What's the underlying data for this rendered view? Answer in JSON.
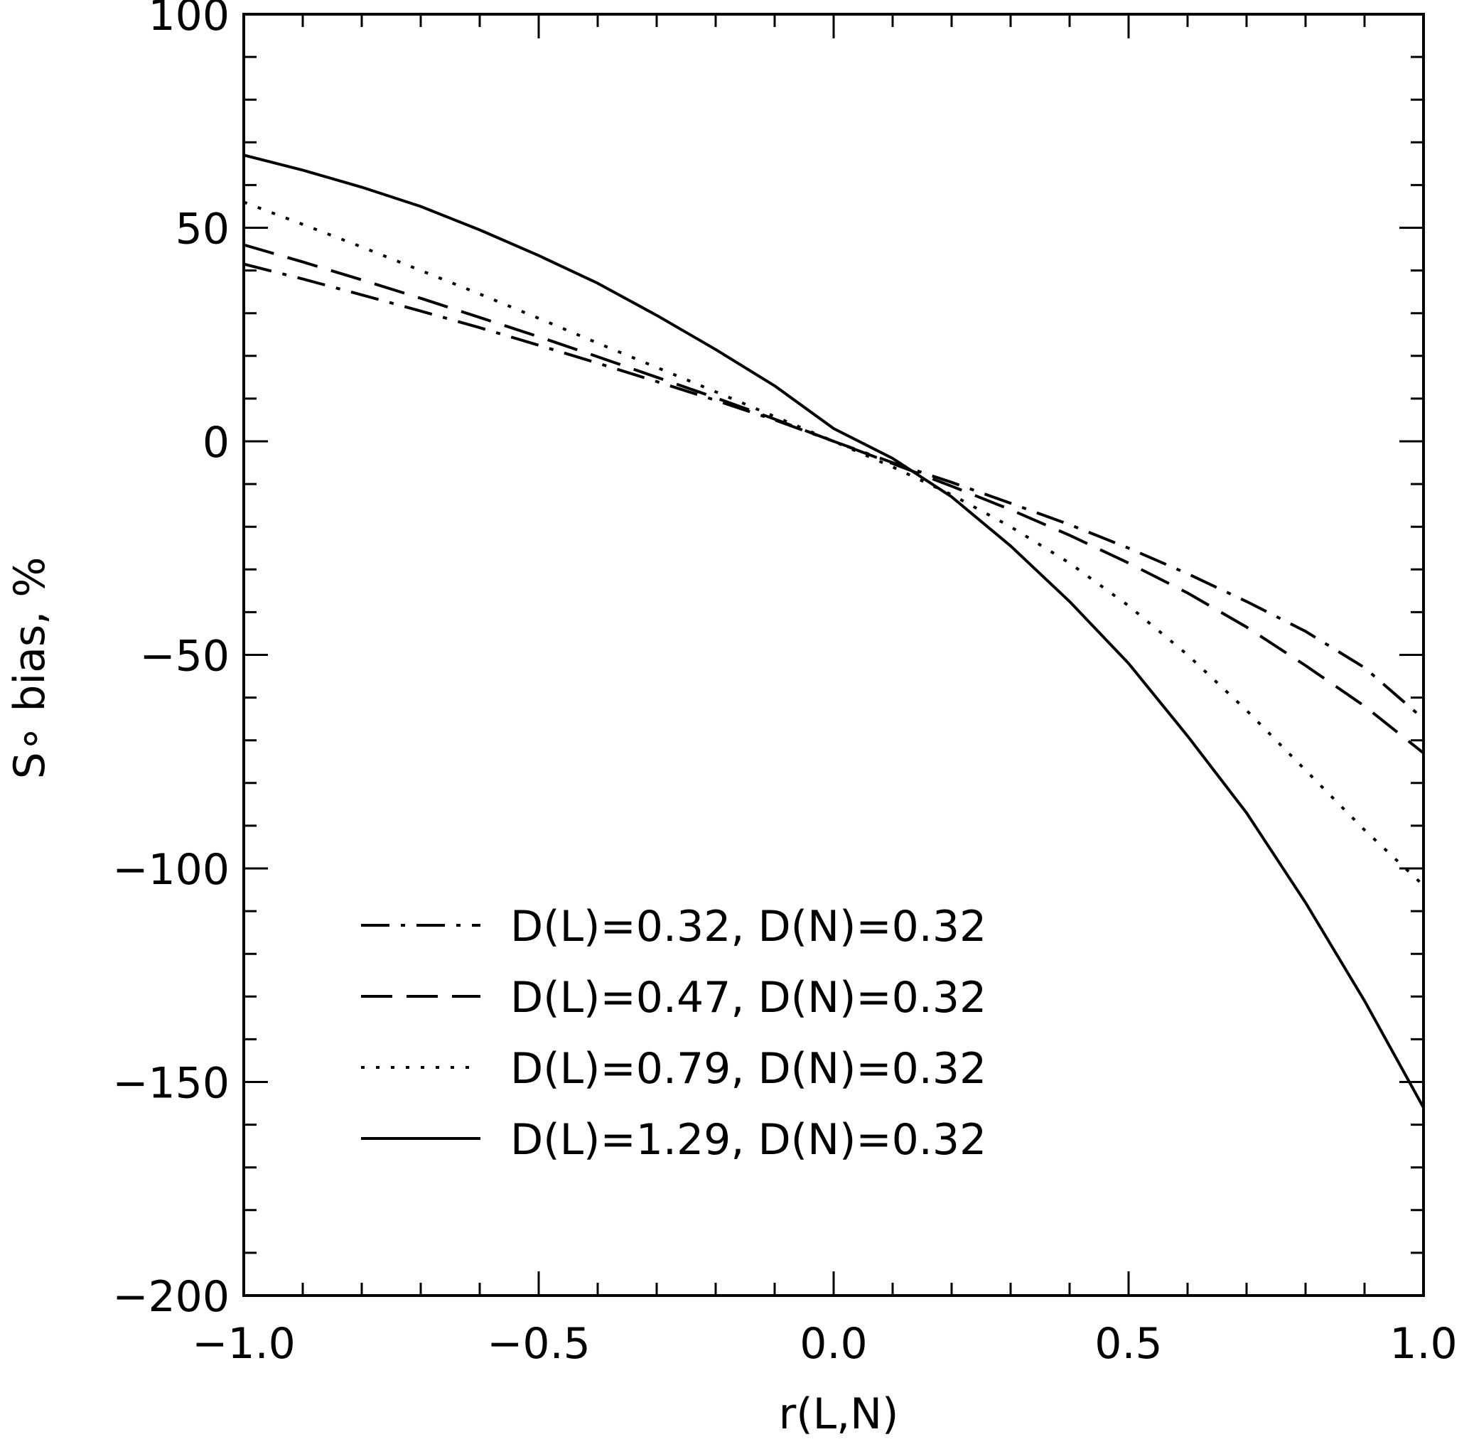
{
  "chart_data": {
    "type": "line",
    "title": "",
    "xlabel": "r(L,N)",
    "ylabel": "S∘ bias, %",
    "xlim": [
      -1.0,
      1.0
    ],
    "ylim": [
      -200,
      100
    ],
    "x_ticks": [
      -1.0,
      -0.5,
      0.0,
      0.5,
      1.0
    ],
    "x_tick_labels": [
      "−1.0",
      "−0.5",
      "0.0",
      "0.5",
      "1.0"
    ],
    "y_ticks": [
      100,
      50,
      0,
      -50,
      -100,
      -150,
      -200
    ],
    "y_tick_labels": [
      "100",
      "50",
      "0",
      "−50",
      "−100",
      "−150",
      "−200"
    ],
    "grid": false,
    "legend_position": "lower-left",
    "colors": {
      "line": "#000000",
      "background": "#ffffff"
    },
    "series": [
      {
        "name": "D(L)=0.32, D(N)=0.32",
        "style": "dashdot",
        "x": [
          -1.0,
          -0.9,
          -0.8,
          -0.7,
          -0.6,
          -0.5,
          -0.4,
          -0.3,
          -0.2,
          -0.1,
          0.0,
          0.1,
          0.2,
          0.3,
          0.4,
          0.5,
          0.6,
          0.7,
          0.8,
          0.9,
          1.0
        ],
        "y": [
          41.5,
          38.0,
          34.3,
          30.5,
          26.6,
          22.5,
          18.3,
          14.0,
          9.6,
          5.0,
          0.0,
          -5.0,
          -9.6,
          -14.5,
          -19.5,
          -25.0,
          -31.0,
          -37.5,
          -44.5,
          -53.0,
          -65.0
        ]
      },
      {
        "name": "D(L)=0.47, D(N)=0.32",
        "style": "dashed",
        "x": [
          -1.0,
          -0.9,
          -0.8,
          -0.7,
          -0.6,
          -0.5,
          -0.4,
          -0.3,
          -0.2,
          -0.1,
          0.0,
          0.1,
          0.2,
          0.3,
          0.4,
          0.5,
          0.6,
          0.7,
          0.8,
          0.9,
          1.0
        ],
        "y": [
          46.0,
          42.0,
          37.8,
          33.5,
          29.0,
          24.5,
          19.8,
          15.0,
          10.2,
          5.2,
          0.0,
          -5.2,
          -10.5,
          -16.0,
          -22.0,
          -28.5,
          -35.5,
          -43.5,
          -52.5,
          -62.0,
          -73.0
        ]
      },
      {
        "name": "D(L)=0.79, D(N)=0.32",
        "style": "dotted",
        "x": [
          -1.0,
          -0.9,
          -0.8,
          -0.7,
          -0.6,
          -0.5,
          -0.4,
          -0.3,
          -0.2,
          -0.1,
          0.0,
          0.1,
          0.2,
          0.3,
          0.4,
          0.5,
          0.6,
          0.7,
          0.8,
          0.9,
          1.0
        ],
        "y": [
          56.0,
          50.8,
          45.5,
          40.0,
          34.5,
          28.8,
          23.0,
          17.3,
          11.6,
          5.8,
          0.0,
          -6.0,
          -12.5,
          -20.0,
          -28.5,
          -38.5,
          -50.0,
          -63.0,
          -77.0,
          -91.0,
          -104.0
        ]
      },
      {
        "name": "D(L)=1.29, D(N)=0.32",
        "style": "solid",
        "x": [
          -1.0,
          -0.9,
          -0.8,
          -0.7,
          -0.6,
          -0.5,
          -0.4,
          -0.3,
          -0.2,
          -0.1,
          0.0,
          0.1,
          0.2,
          0.3,
          0.4,
          0.5,
          0.6,
          0.7,
          0.8,
          0.9,
          1.0
        ],
        "y": [
          67.0,
          63.5,
          59.5,
          55.0,
          49.5,
          43.5,
          37.0,
          29.5,
          21.5,
          13.0,
          3.0,
          -4.0,
          -13.0,
          -24.5,
          -37.5,
          -52.0,
          -69.0,
          -87.0,
          -108.0,
          -131.0,
          -156.0
        ]
      }
    ]
  }
}
